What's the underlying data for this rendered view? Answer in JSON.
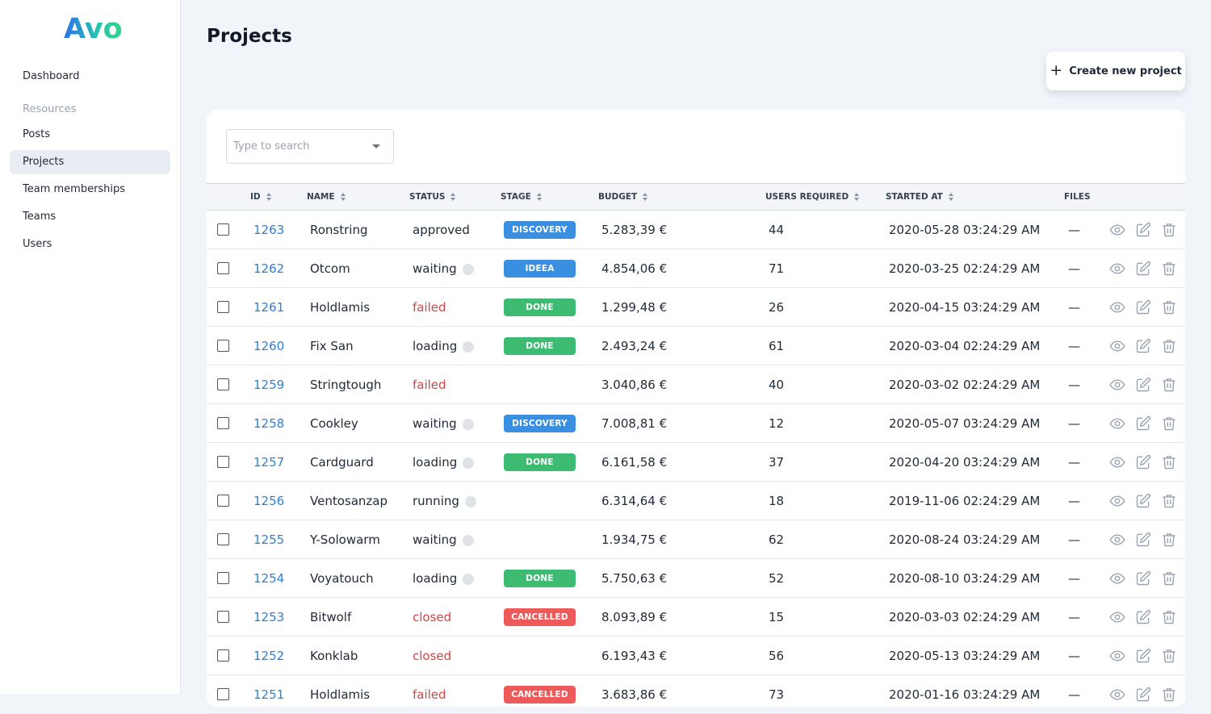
{
  "brand": {
    "logo_text": "Avo"
  },
  "sidebar": {
    "dashboard": "Dashboard",
    "resources_heading": "Resources",
    "items": [
      {
        "label": "Posts",
        "active": false
      },
      {
        "label": "Projects",
        "active": true
      },
      {
        "label": "Team memberships",
        "active": false
      },
      {
        "label": "Teams",
        "active": false
      },
      {
        "label": "Users",
        "active": false
      }
    ]
  },
  "page": {
    "title": "Projects",
    "create_button": "Create new project",
    "search_placeholder": "Type to search"
  },
  "table": {
    "columns": [
      "ID",
      "NAME",
      "STATUS",
      "STAGE",
      "BUDGET",
      "USERS REQUIRED",
      "STARTED AT",
      "FILES"
    ],
    "rows": [
      {
        "id": "1263",
        "name": "Ronstring",
        "status": "approved",
        "status_kind": "plain",
        "stage": "DISCOVERY",
        "budget": "5.283,39 €",
        "users": "44",
        "started": "2020-05-28 03:24:29 AM",
        "files": "—"
      },
      {
        "id": "1262",
        "name": "Otcom",
        "status": "waiting",
        "status_kind": "pending",
        "stage": "IDEEA",
        "budget": "4.854,06 €",
        "users": "71",
        "started": "2020-03-25 02:24:29 AM",
        "files": "—"
      },
      {
        "id": "1261",
        "name": "Holdlamis",
        "status": "failed",
        "status_kind": "error",
        "stage": "DONE",
        "budget": "1.299,48 €",
        "users": "26",
        "started": "2020-04-15 03:24:29 AM",
        "files": "—"
      },
      {
        "id": "1260",
        "name": "Fix San",
        "status": "loading",
        "status_kind": "pending",
        "stage": "DONE",
        "budget": "2.493,24 €",
        "users": "61",
        "started": "2020-03-04 02:24:29 AM",
        "files": "—"
      },
      {
        "id": "1259",
        "name": "Stringtough",
        "status": "failed",
        "status_kind": "error",
        "stage": "",
        "budget": "3.040,86 €",
        "users": "40",
        "started": "2020-03-02 02:24:29 AM",
        "files": "—"
      },
      {
        "id": "1258",
        "name": "Cookley",
        "status": "waiting",
        "status_kind": "pending",
        "stage": "DISCOVERY",
        "budget": "7.008,81 €",
        "users": "12",
        "started": "2020-05-07 03:24:29 AM",
        "files": "—"
      },
      {
        "id": "1257",
        "name": "Cardguard",
        "status": "loading",
        "status_kind": "pending",
        "stage": "DONE",
        "budget": "6.161,58 €",
        "users": "37",
        "started": "2020-04-20 03:24:29 AM",
        "files": "—"
      },
      {
        "id": "1256",
        "name": "Ventosanzap",
        "status": "running",
        "status_kind": "pending",
        "stage": "",
        "budget": "6.314,64 €",
        "users": "18",
        "started": "2019-11-06 02:24:29 AM",
        "files": "—"
      },
      {
        "id": "1255",
        "name": "Y-Solowarm",
        "status": "waiting",
        "status_kind": "pending",
        "stage": "",
        "budget": "1.934,75 €",
        "users": "62",
        "started": "2020-08-24 03:24:29 AM",
        "files": "—"
      },
      {
        "id": "1254",
        "name": "Voyatouch",
        "status": "loading",
        "status_kind": "pending",
        "stage": "DONE",
        "budget": "5.750,63 €",
        "users": "52",
        "started": "2020-08-10 03:24:29 AM",
        "files": "—"
      },
      {
        "id": "1253",
        "name": "Bitwolf",
        "status": "closed",
        "status_kind": "error",
        "stage": "CANCELLED",
        "budget": "8.093,89 €",
        "users": "15",
        "started": "2020-03-03 02:24:29 AM",
        "files": "—"
      },
      {
        "id": "1252",
        "name": "Konklab",
        "status": "closed",
        "status_kind": "error",
        "stage": "",
        "budget": "6.193,43 €",
        "users": "56",
        "started": "2020-05-13 03:24:29 AM",
        "files": "—"
      },
      {
        "id": "1251",
        "name": "Holdlamis",
        "status": "failed",
        "status_kind": "error",
        "stage": "CANCELLED",
        "budget": "3.683,86 €",
        "users": "73",
        "started": "2020-01-16 03:24:29 AM",
        "files": "—"
      }
    ]
  },
  "stage_colors": {
    "DISCOVERY": "#3b8fe0",
    "IDEEA": "#3b8fe0",
    "DONE": "#3dbb73",
    "CANCELLED": "#ee5a5a"
  },
  "colors": {
    "link": "#2f7fd0",
    "error_text": "#d24545",
    "background": "#f1f4f8"
  },
  "icons": {
    "row_actions": [
      "eye-icon",
      "edit-icon",
      "trash-icon"
    ],
    "create": "plus-icon",
    "sort": "sort-arrows-icon",
    "status_pending": "dot-icon"
  }
}
